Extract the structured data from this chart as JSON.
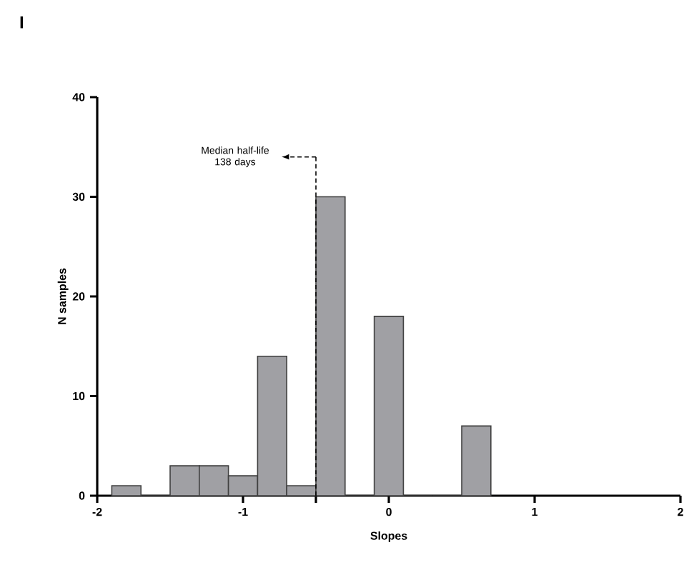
{
  "chart_data": {
    "type": "histogram",
    "bins": [
      -1.9,
      -1.7,
      -1.5,
      -1.3,
      -1.1,
      -0.9,
      -0.7,
      -0.5,
      -0.3,
      -0.1,
      0.1,
      0.3,
      0.5,
      0.7
    ],
    "values": [
      1,
      0,
      3,
      3,
      2,
      14,
      1,
      30,
      0,
      18,
      0,
      0,
      7
    ],
    "color": "#a0a0a4",
    "xlabel": "Slopes",
    "ylabel": "N samples",
    "xlim": [
      -2,
      2
    ],
    "ylim": [
      0,
      40
    ],
    "xticks": [
      -2,
      -1,
      {
        "value": -0.5,
        "label": null
      },
      0,
      1,
      2
    ],
    "yticks": [
      0,
      10,
      20,
      30,
      40
    ],
    "grid": false,
    "annotations": [
      "I"
    ],
    "ref_lines": [
      {
        "axis": "x",
        "value": -0.5,
        "label": "Median half-life 138 days",
        "line_style": "dashed"
      }
    ]
  }
}
